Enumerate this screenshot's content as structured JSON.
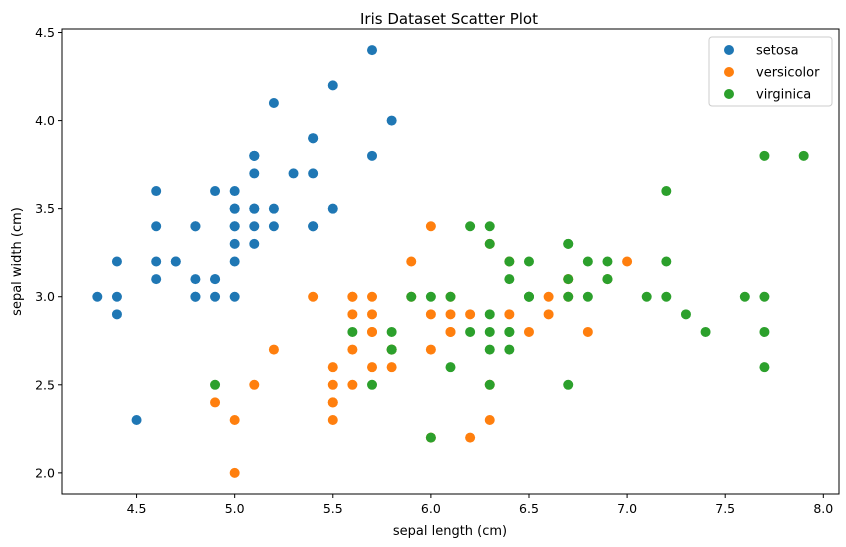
{
  "chart_data": {
    "type": "scatter",
    "title": "Iris Dataset Scatter Plot",
    "xlabel": "sepal length (cm)",
    "ylabel": "sepal width (cm)",
    "xlim": [
      4.12,
      8.08
    ],
    "ylim": [
      1.88,
      4.52
    ],
    "xticks": [
      4.5,
      5.0,
      5.5,
      6.0,
      6.5,
      7.0,
      7.5,
      8.0
    ],
    "xtick_labels": [
      "4.5",
      "5.0",
      "5.5",
      "6.0",
      "6.5",
      "7.0",
      "7.5",
      "8.0"
    ],
    "yticks": [
      2.0,
      2.5,
      3.0,
      3.5,
      4.0,
      4.5
    ],
    "ytick_labels": [
      "2.0",
      "2.5",
      "3.0",
      "3.5",
      "4.0",
      "4.5"
    ],
    "grid": false,
    "legend_position": "top-right",
    "series": [
      {
        "name": "setosa",
        "color": "#1f77b4",
        "points": [
          [
            5.1,
            3.5
          ],
          [
            4.9,
            3.0
          ],
          [
            4.7,
            3.2
          ],
          [
            4.6,
            3.1
          ],
          [
            5.0,
            3.6
          ],
          [
            5.4,
            3.9
          ],
          [
            4.6,
            3.4
          ],
          [
            5.0,
            3.4
          ],
          [
            4.4,
            2.9
          ],
          [
            4.9,
            3.1
          ],
          [
            5.4,
            3.7
          ],
          [
            4.8,
            3.4
          ],
          [
            4.8,
            3.0
          ],
          [
            4.3,
            3.0
          ],
          [
            5.8,
            4.0
          ],
          [
            5.7,
            4.4
          ],
          [
            5.4,
            3.9
          ],
          [
            5.1,
            3.5
          ],
          [
            5.7,
            3.8
          ],
          [
            5.1,
            3.8
          ],
          [
            5.4,
            3.4
          ],
          [
            5.1,
            3.7
          ],
          [
            4.6,
            3.6
          ],
          [
            5.1,
            3.3
          ],
          [
            4.8,
            3.4
          ],
          [
            5.0,
            3.0
          ],
          [
            5.0,
            3.4
          ],
          [
            5.2,
            3.5
          ],
          [
            5.2,
            3.4
          ],
          [
            4.7,
            3.2
          ],
          [
            4.8,
            3.1
          ],
          [
            5.4,
            3.4
          ],
          [
            5.2,
            4.1
          ],
          [
            5.5,
            4.2
          ],
          [
            4.9,
            3.1
          ],
          [
            5.0,
            3.2
          ],
          [
            5.5,
            3.5
          ],
          [
            4.9,
            3.6
          ],
          [
            4.4,
            3.0
          ],
          [
            5.1,
            3.4
          ],
          [
            5.0,
            3.5
          ],
          [
            4.5,
            2.3
          ],
          [
            4.4,
            3.2
          ],
          [
            5.0,
            3.5
          ],
          [
            5.1,
            3.8
          ],
          [
            4.8,
            3.0
          ],
          [
            5.1,
            3.8
          ],
          [
            4.6,
            3.2
          ],
          [
            5.3,
            3.7
          ],
          [
            5.0,
            3.3
          ]
        ]
      },
      {
        "name": "versicolor",
        "color": "#ff7f0e",
        "points": [
          [
            7.0,
            3.2
          ],
          [
            6.4,
            3.2
          ],
          [
            6.9,
            3.1
          ],
          [
            5.5,
            2.3
          ],
          [
            6.5,
            2.8
          ],
          [
            5.7,
            2.8
          ],
          [
            6.3,
            3.3
          ],
          [
            4.9,
            2.4
          ],
          [
            6.6,
            2.9
          ],
          [
            5.2,
            2.7
          ],
          [
            5.0,
            2.0
          ],
          [
            5.9,
            3.0
          ],
          [
            6.0,
            2.2
          ],
          [
            6.1,
            2.9
          ],
          [
            5.6,
            2.9
          ],
          [
            6.7,
            3.1
          ],
          [
            5.6,
            3.0
          ],
          [
            5.8,
            2.7
          ],
          [
            6.2,
            2.2
          ],
          [
            5.6,
            2.5
          ],
          [
            5.9,
            3.2
          ],
          [
            6.1,
            2.8
          ],
          [
            6.3,
            2.5
          ],
          [
            6.1,
            2.8
          ],
          [
            6.4,
            2.9
          ],
          [
            6.6,
            3.0
          ],
          [
            6.8,
            2.8
          ],
          [
            6.7,
            3.0
          ],
          [
            6.0,
            2.9
          ],
          [
            5.7,
            2.6
          ],
          [
            5.5,
            2.4
          ],
          [
            5.5,
            2.4
          ],
          [
            5.8,
            2.7
          ],
          [
            6.0,
            2.7
          ],
          [
            5.4,
            3.0
          ],
          [
            6.0,
            3.4
          ],
          [
            6.7,
            3.1
          ],
          [
            6.3,
            2.3
          ],
          [
            5.6,
            3.0
          ],
          [
            5.5,
            2.5
          ],
          [
            5.5,
            2.6
          ],
          [
            6.1,
            3.0
          ],
          [
            5.8,
            2.6
          ],
          [
            5.0,
            2.3
          ],
          [
            5.6,
            2.7
          ],
          [
            5.7,
            3.0
          ],
          [
            5.7,
            2.9
          ],
          [
            6.2,
            2.9
          ],
          [
            5.1,
            2.5
          ],
          [
            5.7,
            2.8
          ]
        ]
      },
      {
        "name": "virginica",
        "color": "#2ca02c",
        "points": [
          [
            6.3,
            3.3
          ],
          [
            5.8,
            2.7
          ],
          [
            7.1,
            3.0
          ],
          [
            6.3,
            2.9
          ],
          [
            6.5,
            3.0
          ],
          [
            7.6,
            3.0
          ],
          [
            4.9,
            2.5
          ],
          [
            7.3,
            2.9
          ],
          [
            6.7,
            2.5
          ],
          [
            7.2,
            3.6
          ],
          [
            6.5,
            3.2
          ],
          [
            6.4,
            2.7
          ],
          [
            6.8,
            3.0
          ],
          [
            5.7,
            2.5
          ],
          [
            5.8,
            2.8
          ],
          [
            6.4,
            3.2
          ],
          [
            6.5,
            3.0
          ],
          [
            7.7,
            3.8
          ],
          [
            7.7,
            2.6
          ],
          [
            6.0,
            2.2
          ],
          [
            6.9,
            3.2
          ],
          [
            5.6,
            2.8
          ],
          [
            7.7,
            2.8
          ],
          [
            6.3,
            2.7
          ],
          [
            6.7,
            3.3
          ],
          [
            7.2,
            3.2
          ],
          [
            6.2,
            2.8
          ],
          [
            6.1,
            3.0
          ],
          [
            6.4,
            2.8
          ],
          [
            7.2,
            3.0
          ],
          [
            7.4,
            2.8
          ],
          [
            7.9,
            3.8
          ],
          [
            6.4,
            2.8
          ],
          [
            6.3,
            2.8
          ],
          [
            6.1,
            2.6
          ],
          [
            7.7,
            3.0
          ],
          [
            6.3,
            3.4
          ],
          [
            6.4,
            3.1
          ],
          [
            6.0,
            3.0
          ],
          [
            6.9,
            3.1
          ],
          [
            6.7,
            3.1
          ],
          [
            6.9,
            3.1
          ],
          [
            5.8,
            2.7
          ],
          [
            6.8,
            3.2
          ],
          [
            6.7,
            3.3
          ],
          [
            6.7,
            3.0
          ],
          [
            6.3,
            2.5
          ],
          [
            6.5,
            3.0
          ],
          [
            6.2,
            3.4
          ],
          [
            5.9,
            3.0
          ]
        ]
      }
    ]
  }
}
